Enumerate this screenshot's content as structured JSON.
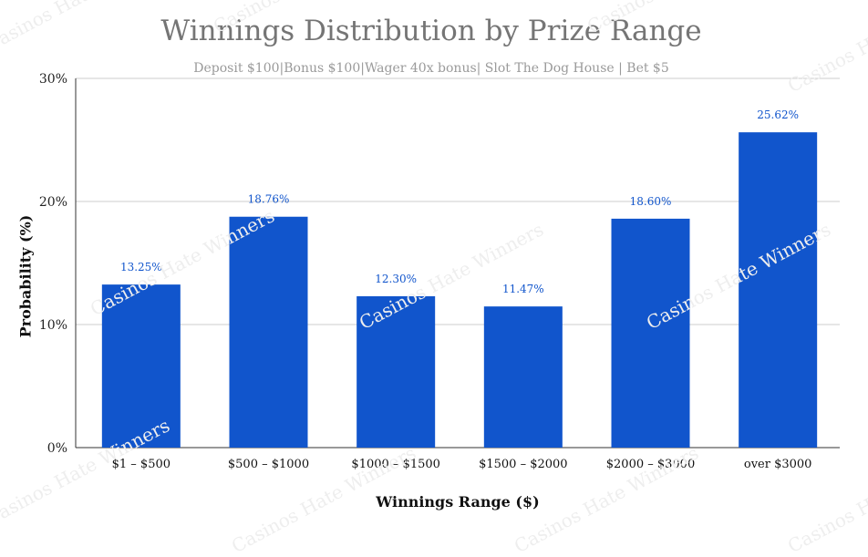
{
  "chart_data": {
    "type": "bar",
    "title": "Winnings Distribution by Prize Range",
    "subtitle": "Deposit $100|Bonus  $100|Wager 40x bonus| Slot The Dog House | Bet $5",
    "xlabel": "Winnings Range ($)",
    "ylabel": "Probability (%)",
    "categories": [
      "$1 – $500",
      "$500 – $1000",
      "$1000 – $1500",
      "$1500 – $2000",
      "$2000 – $3000",
      "over $3000"
    ],
    "values": [
      13.25,
      18.76,
      12.3,
      11.47,
      18.6,
      25.62
    ],
    "data_labels": [
      "13.25%",
      "18.76%",
      "12.30%",
      "11.47%",
      "18.60%",
      "25.62%"
    ],
    "ylim": [
      0,
      30
    ],
    "yticks": [
      0,
      10,
      20,
      30
    ],
    "ytick_labels": [
      "0%",
      "10%",
      "20%",
      "30%"
    ],
    "grid": true,
    "legend": "none",
    "colors": {
      "bar": "#1155cc",
      "data_label": "#1155cc",
      "grid": "#cccccc",
      "axis": "#333333"
    }
  },
  "watermark": "Casinos Hate Winners"
}
